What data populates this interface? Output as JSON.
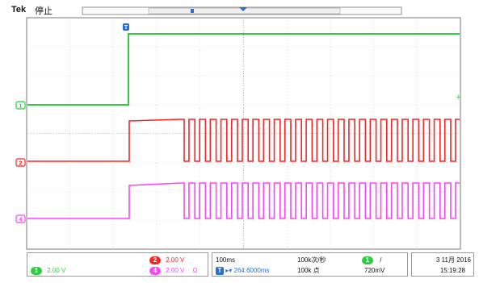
{
  "header": {
    "brand": "Tek",
    "run_state": "停止"
  },
  "channels": [
    {
      "id": "1",
      "color": "#2ecc40",
      "volts_per_div": "2.00 V"
    },
    {
      "id": "2",
      "color": "#ff2020",
      "volts_per_div": "2.00 V"
    },
    {
      "id": "4",
      "color": "#ff40ff",
      "volts_per_div": "2.00 V",
      "coupling": "Ω"
    }
  ],
  "markers": {
    "trigger_marker": "T",
    "channel_marker_1": "1",
    "channel_marker_2": "2",
    "channel_marker_4": "4"
  },
  "timebase": {
    "time_per_div": "100ms",
    "trigger_position": "264.6000ms",
    "sample_rate": "100k次/秒",
    "record_length": "100k 点"
  },
  "trigger": {
    "source": "1",
    "slope_symbol": "/",
    "level": "720mV"
  },
  "datetime": {
    "date": "3 11月 2016",
    "time": "15:19:28"
  },
  "colors": {
    "grid": "#bdbdbd",
    "frame": "#7a7a7a",
    "ch1": "#2ecc40",
    "ch2": "#ff2020",
    "ch4": "#ff40ff",
    "trigger_blue": "#2a6fd6"
  }
}
